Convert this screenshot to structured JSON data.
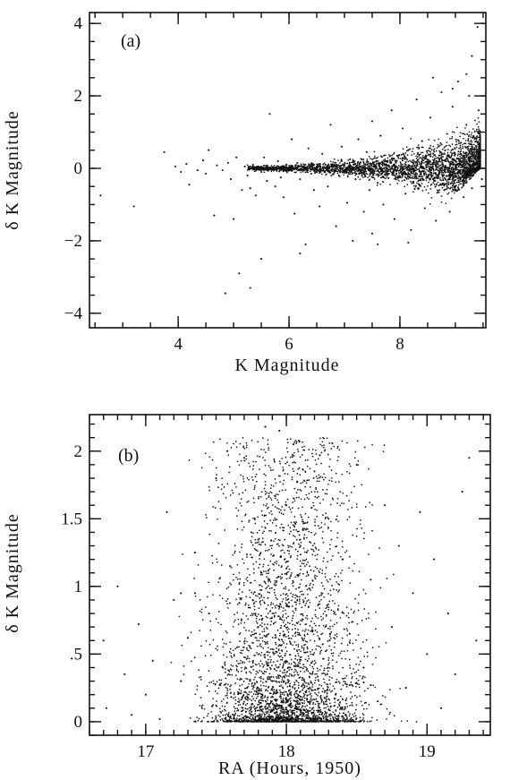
{
  "chart_data": [
    {
      "type": "scatter",
      "panel_label": "(a)",
      "xlabel": "K Magnitude",
      "ylabel": "δ K Magnitude",
      "xlim": [
        2.4,
        9.55
      ],
      "ylim": [
        -4.4,
        4.3
      ],
      "x_ticks": [
        4,
        6,
        8
      ],
      "x_tick_labels": [
        "4",
        "6",
        "8"
      ],
      "x_minor_step": 0.5,
      "y_ticks": [
        -4,
        -2,
        0,
        2,
        4
      ],
      "y_tick_labels": [
        "−4",
        "−2",
        "0",
        "2",
        "4"
      ],
      "y_minor_step": 0.5,
      "grid": false,
      "legend": "none",
      "marker_color": "#111111",
      "points": [
        [
          3.75,
          0.45
        ],
        [
          3.95,
          0.05
        ],
        [
          4.05,
          -0.1
        ],
        [
          4.15,
          0.12
        ],
        [
          4.2,
          -0.45
        ],
        [
          4.35,
          -0.05
        ],
        [
          4.45,
          0.22
        ],
        [
          4.5,
          -0.15
        ],
        [
          4.55,
          0.5
        ],
        [
          4.65,
          -1.3
        ],
        [
          4.7,
          0.08
        ],
        [
          4.8,
          -0.05
        ],
        [
          4.9,
          0.15
        ],
        [
          4.95,
          -0.3
        ],
        [
          5.0,
          -1.4
        ],
        [
          5.05,
          0.3
        ],
        [
          5.1,
          -2.9
        ],
        [
          5.15,
          -0.6
        ],
        [
          5.2,
          0.05
        ],
        [
          5.25,
          -0.2
        ],
        [
          5.3,
          -0.55
        ],
        [
          5.35,
          0.1
        ],
        [
          5.4,
          -0.75
        ],
        [
          5.45,
          0.05
        ],
        [
          5.5,
          -0.1
        ],
        [
          5.5,
          -2.5
        ],
        [
          5.55,
          0.3
        ],
        [
          5.6,
          -0.35
        ],
        [
          5.65,
          1.5
        ],
        [
          5.7,
          0.0
        ],
        [
          5.75,
          -0.5
        ],
        [
          5.8,
          0.2
        ],
        [
          5.85,
          -0.25
        ],
        [
          5.9,
          -0.8
        ],
        [
          5.95,
          0.1
        ],
        [
          6.0,
          -0.05
        ],
        [
          6.05,
          0.8
        ],
        [
          6.1,
          -1.25
        ],
        [
          6.15,
          0.15
        ],
        [
          6.2,
          -0.3
        ],
        [
          6.25,
          -0.05
        ],
        [
          6.3,
          -2.1
        ],
        [
          6.35,
          0.55
        ],
        [
          6.4,
          -0.15
        ],
        [
          6.45,
          -0.6
        ],
        [
          6.5,
          0.05
        ],
        [
          6.55,
          -1.05
        ],
        [
          6.6,
          0.4
        ],
        [
          6.65,
          -0.1
        ],
        [
          6.7,
          -0.5
        ],
        [
          6.75,
          1.2
        ],
        [
          6.8,
          0.05
        ],
        [
          6.85,
          -1.6
        ],
        [
          6.9,
          -0.2
        ],
        [
          6.95,
          0.6
        ],
        [
          7.0,
          -0.05
        ],
        [
          7.05,
          -0.95
        ],
        [
          7.1,
          0.25
        ],
        [
          7.15,
          -2.0
        ],
        [
          7.2,
          -0.3
        ],
        [
          7.25,
          0.8
        ],
        [
          7.3,
          -0.1
        ],
        [
          7.35,
          -1.2
        ],
        [
          7.4,
          0.45
        ],
        [
          7.45,
          -0.6
        ],
        [
          7.5,
          1.3
        ],
        [
          7.5,
          -1.8
        ],
        [
          7.55,
          0.05
        ],
        [
          7.6,
          -0.4
        ],
        [
          7.65,
          0.9
        ],
        [
          7.7,
          -1.0
        ],
        [
          7.75,
          0.2
        ],
        [
          7.8,
          -0.15
        ],
        [
          7.85,
          1.6
        ],
        [
          7.9,
          -1.4
        ],
        [
          7.95,
          0.35
        ],
        [
          8.0,
          -0.25
        ],
        [
          8.05,
          1.1
        ],
        [
          8.1,
          -0.7
        ],
        [
          8.15,
          0.5
        ],
        [
          8.2,
          -1.7
        ],
        [
          8.25,
          0.0
        ],
        [
          8.3,
          1.9
        ],
        [
          8.35,
          -0.45
        ],
        [
          8.4,
          0.75
        ],
        [
          8.45,
          -1.1
        ],
        [
          8.5,
          0.15
        ],
        [
          8.55,
          1.4
        ],
        [
          8.6,
          -0.3
        ],
        [
          8.65,
          -1.45
        ],
        [
          8.7,
          0.6
        ],
        [
          8.75,
          2.1
        ],
        [
          8.8,
          -0.6
        ],
        [
          8.85,
          0.95
        ],
        [
          8.9,
          -1.2
        ],
        [
          8.95,
          1.7
        ],
        [
          9.0,
          -0.2
        ],
        [
          9.05,
          2.4
        ],
        [
          9.1,
          0.4
        ],
        [
          9.15,
          -0.8
        ],
        [
          9.2,
          1.2
        ],
        [
          9.25,
          2.0
        ],
        [
          9.3,
          -0.55
        ],
        [
          9.35,
          0.85
        ],
        [
          9.4,
          3.9
        ],
        [
          9.42,
          1.6
        ],
        [
          9.45,
          0.3
        ],
        [
          9.48,
          -0.3
        ],
        [
          9.2,
          2.6
        ],
        [
          8.95,
          2.2
        ],
        [
          8.6,
          2.5
        ],
        [
          9.3,
          3.1
        ],
        [
          5.3,
          -3.3
        ],
        [
          4.85,
          -3.45
        ],
        [
          6.2,
          -2.35
        ],
        [
          7.6,
          -2.1
        ],
        [
          8.15,
          -2.05
        ],
        [
          2.6,
          -0.75
        ],
        [
          3.2,
          -1.05
        ]
      ]
    },
    {
      "type": "scatter",
      "panel_label": "(b)",
      "xlabel": "RA (Hours, 1950)",
      "ylabel": "δ K Magnitude",
      "xlim": [
        16.6,
        19.45
      ],
      "ylim": [
        -0.1,
        2.27
      ],
      "x_ticks": [
        17,
        18,
        19
      ],
      "x_tick_labels": [
        "17",
        "18",
        "19"
      ],
      "x_minor_step": 0.1,
      "y_ticks": [
        0,
        0.5,
        1,
        1.5,
        2
      ],
      "y_tick_labels": [
        "0",
        ".5",
        "1",
        "1.5",
        "2"
      ],
      "y_minor_step": 0.1,
      "grid": false,
      "legend": "none",
      "marker_color": "#111111",
      "points": [
        [
          16.7,
          0.6
        ],
        [
          16.72,
          0.1
        ],
        [
          16.8,
          1.0
        ],
        [
          16.85,
          0.35
        ],
        [
          16.9,
          0.05
        ],
        [
          16.95,
          0.72
        ],
        [
          17.0,
          0.2
        ],
        [
          17.05,
          0.45
        ],
        [
          17.1,
          0.02
        ],
        [
          17.15,
          1.55
        ],
        [
          17.2,
          0.9
        ],
        [
          17.25,
          0.3
        ],
        [
          17.3,
          0.62
        ],
        [
          17.35,
          1.25
        ],
        [
          17.4,
          0.1
        ],
        [
          17.45,
          0.8
        ],
        [
          17.5,
          1.8
        ],
        [
          17.55,
          0.4
        ],
        [
          17.58,
          2.0
        ],
        [
          17.6,
          1.15
        ],
        [
          17.65,
          0.55
        ],
        [
          17.7,
          1.95
        ],
        [
          17.72,
          0.25
        ],
        [
          17.75,
          1.4
        ],
        [
          17.8,
          0.7
        ],
        [
          17.85,
          2.18
        ],
        [
          17.88,
          1.05
        ],
        [
          17.9,
          0.3
        ],
        [
          17.95,
          2.15
        ],
        [
          18.0,
          1.6
        ],
        [
          18.02,
          0.85
        ],
        [
          18.05,
          2.05
        ],
        [
          18.1,
          1.3
        ],
        [
          18.15,
          0.45
        ],
        [
          18.2,
          1.85
        ],
        [
          18.25,
          0.95
        ],
        [
          18.3,
          1.5
        ],
        [
          18.35,
          0.2
        ],
        [
          18.4,
          1.2
        ],
        [
          18.45,
          0.65
        ],
        [
          18.5,
          1.9
        ],
        [
          18.55,
          0.4
        ],
        [
          18.6,
          1.05
        ],
        [
          18.65,
          0.15
        ],
        [
          18.7,
          1.6
        ],
        [
          18.75,
          0.7
        ],
        [
          18.8,
          1.3
        ],
        [
          18.85,
          0.25
        ],
        [
          18.9,
          0.95
        ],
        [
          18.95,
          1.55
        ],
        [
          19.0,
          0.5
        ],
        [
          19.05,
          1.2
        ],
        [
          19.1,
          0.1
        ],
        [
          19.15,
          0.8
        ],
        [
          19.2,
          0.35
        ],
        [
          19.25,
          1.7
        ],
        [
          19.3,
          1.95
        ],
        [
          19.35,
          0.6
        ],
        [
          18.42,
          0.28
        ],
        [
          18.45,
          0.27
        ],
        [
          18.55,
          0.29
        ],
        [
          18.6,
          0.27
        ],
        [
          17.35,
          0.95
        ],
        [
          17.25,
          0.95
        ]
      ]
    }
  ]
}
